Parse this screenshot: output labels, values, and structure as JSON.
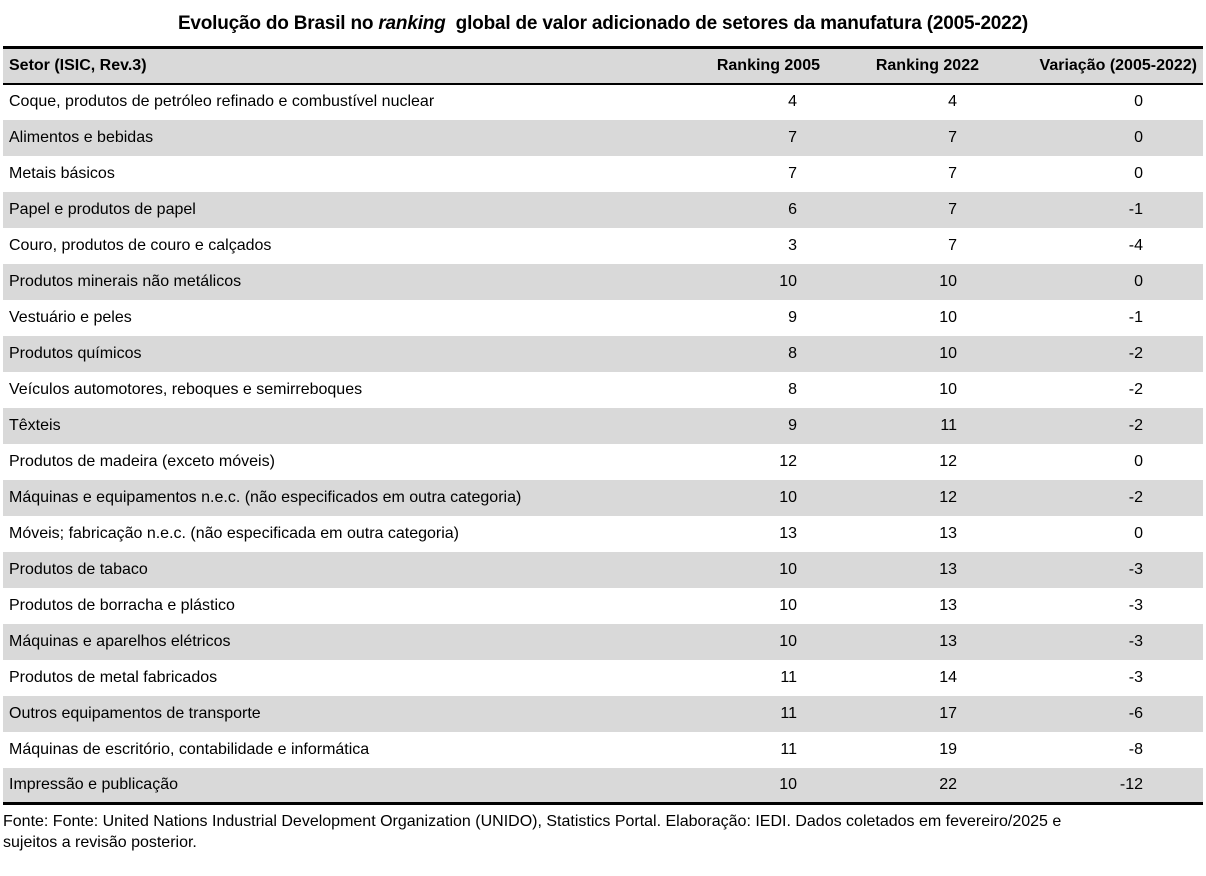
{
  "title": {
    "prefix": "Evolução do Brasil no ",
    "italic": "ranking",
    "suffix": " global de valor adicionado de setores da manufatura (2005-2022)"
  },
  "chart_data": {
    "type": "table",
    "title": "Evolução do Brasil no ranking global de valor adicionado de setores da manufatura (2005-2022)",
    "columns": [
      "Setor (ISIC, Rev.3)",
      "Ranking 2005",
      "Ranking 2022",
      "Variação (2005-2022)"
    ],
    "rows": [
      [
        "Coque, produtos de petróleo refinado e combustível nuclear",
        4,
        4,
        0
      ],
      [
        "Alimentos e bebidas",
        7,
        7,
        0
      ],
      [
        "Metais básicos",
        7,
        7,
        0
      ],
      [
        "Papel e produtos de papel",
        6,
        7,
        -1
      ],
      [
        "Couro, produtos de couro e calçados",
        3,
        7,
        -4
      ],
      [
        "Produtos minerais não metálicos",
        10,
        10,
        0
      ],
      [
        "Vestuário e peles",
        9,
        10,
        -1
      ],
      [
        "Produtos químicos",
        8,
        10,
        -2
      ],
      [
        "Veículos automotores, reboques e semirreboques",
        8,
        10,
        -2
      ],
      [
        "Têxteis",
        9,
        11,
        -2
      ],
      [
        "Produtos de madeira (exceto móveis)",
        12,
        12,
        0
      ],
      [
        "Máquinas e equipamentos n.e.c. (não especificados em outra categoria)",
        10,
        12,
        -2
      ],
      [
        "Móveis; fabricação n.e.c. (não especificada em outra categoria)",
        13,
        13,
        0
      ],
      [
        "Produtos de tabaco",
        10,
        13,
        -3
      ],
      [
        "Produtos de borracha e plástico",
        10,
        13,
        -3
      ],
      [
        "Máquinas e aparelhos elétricos",
        10,
        13,
        -3
      ],
      [
        "Produtos de metal fabricados",
        11,
        14,
        -3
      ],
      [
        "Outros equipamentos de transporte",
        11,
        17,
        -6
      ],
      [
        "Máquinas de escritório, contabilidade e informática",
        11,
        19,
        -8
      ],
      [
        "Impressão e publicação",
        10,
        22,
        -12
      ]
    ],
    "layout": {
      "striped": true,
      "stripe_color": "#d9d9d9",
      "header_background": "#d9d9d9",
      "first_data_row_background": "#ffffff",
      "border_color": "#000000"
    }
  },
  "footer": {
    "source": "Fonte: Fonte: United Nations Industrial Development Organization (UNIDO), Statistics Portal. Elaboração: IEDI. Dados coletados em fevereiro/2025 e sujeitos a revisão posterior."
  },
  "colors": {
    "stripe": "#d9d9d9",
    "header_bg": "#d9d9d9",
    "border": "#000000",
    "text": "#000000",
    "background": "#ffffff"
  }
}
